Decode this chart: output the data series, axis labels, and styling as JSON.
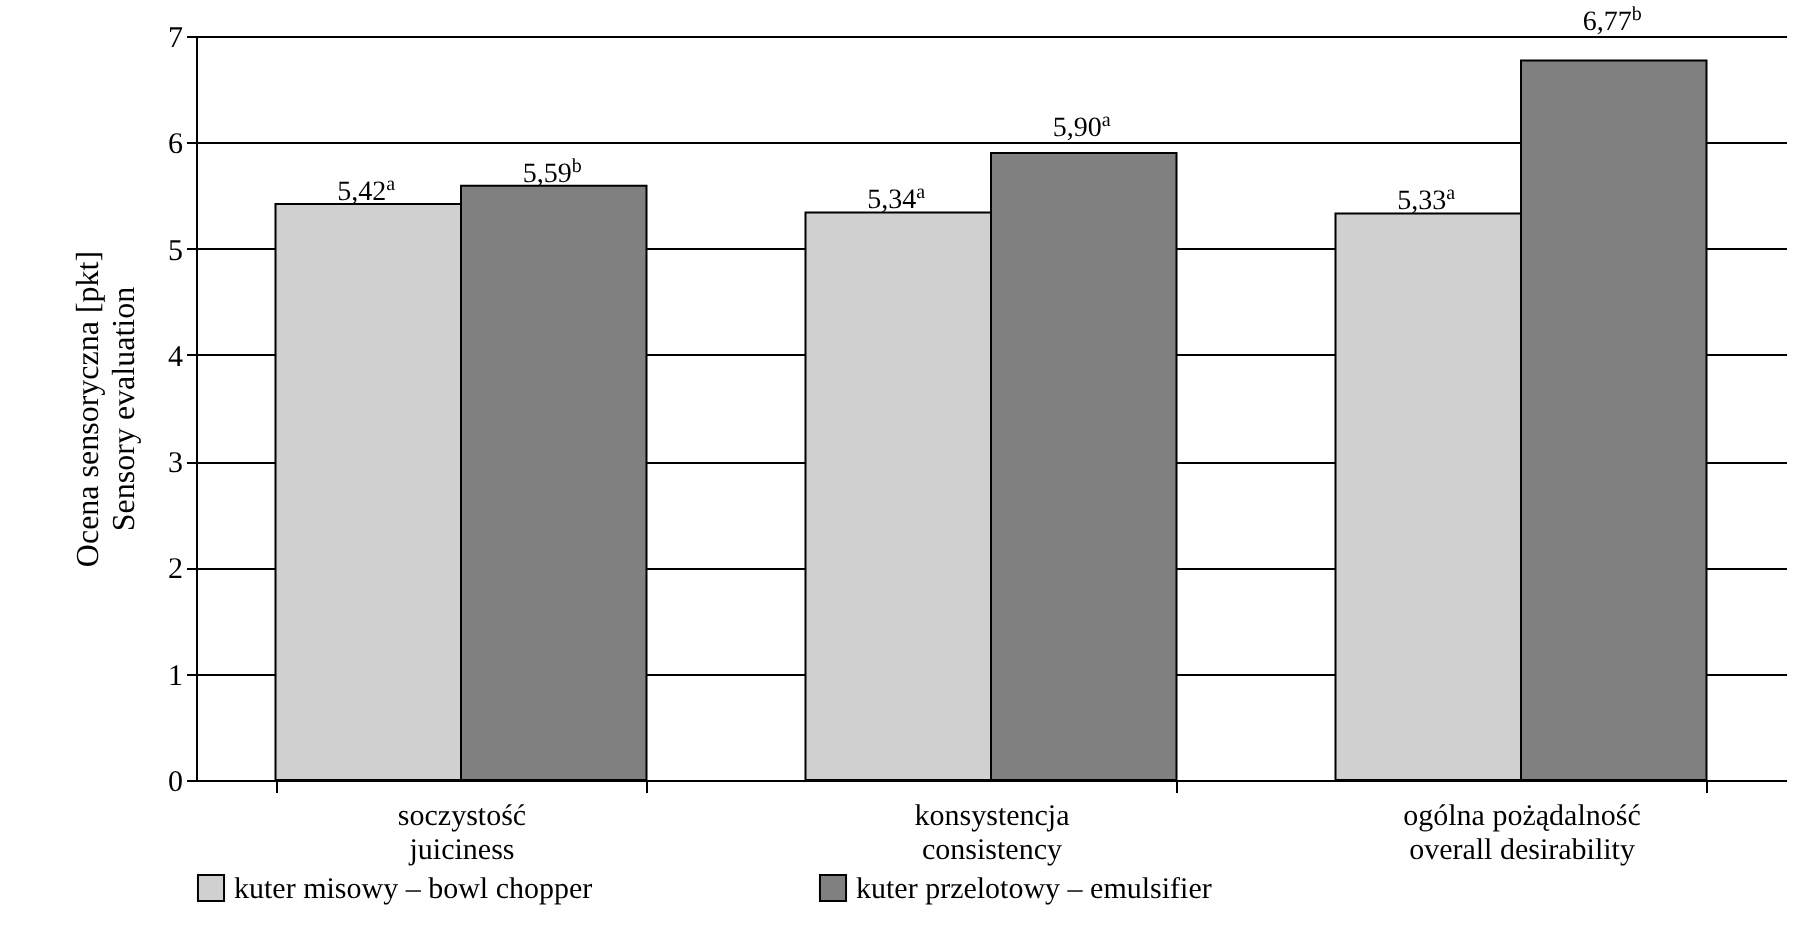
{
  "chart_data": {
    "type": "bar",
    "ylabel": "Ocena sensoryczna [pkt]\nSensory evaluation",
    "categories": [
      "soczystość\njuiciness",
      "konsystencja\nconsistency",
      "ogólna pożądalność\noverall desirability"
    ],
    "series": [
      {
        "name": "kuter misowy – bowl chopper",
        "color": "#d0d0d0",
        "values": [
          5.42,
          5.34,
          5.33
        ],
        "value_labels": [
          "5,42$^{a}$",
          "5,34$^{a}$",
          "5,33$^{a}$"
        ]
      },
      {
        "name": "kuter przelotowy – emulsifier",
        "color": "#808080",
        "values": [
          5.59,
          5.9,
          6.77
        ],
        "value_labels": [
          "5,59$^{b}$",
          "5,90$^{a}$",
          "6,77$^{b}$"
        ]
      }
    ],
    "ylim": [
      0,
      7
    ],
    "yticks": [
      0,
      1,
      2,
      3,
      4,
      5,
      6,
      7
    ],
    "grid": "y",
    "legend": "bottom"
  }
}
